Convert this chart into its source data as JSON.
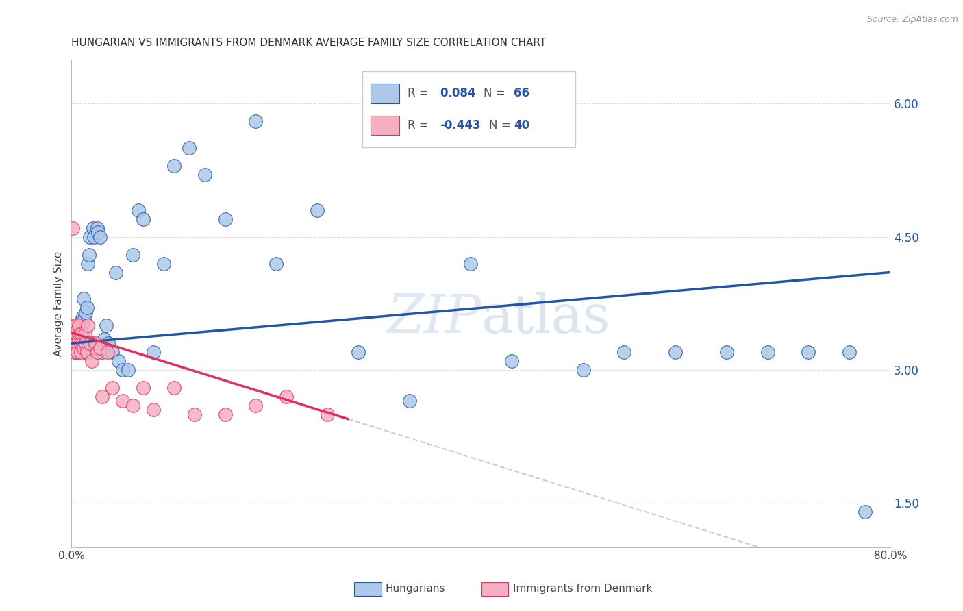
{
  "title": "HUNGARIAN VS IMMIGRANTS FROM DENMARK AVERAGE FAMILY SIZE CORRELATION CHART",
  "source": "Source: ZipAtlas.com",
  "ylabel": "Average Family Size",
  "right_yticks": [
    1.5,
    3.0,
    4.5,
    6.0
  ],
  "xmin": 0.0,
  "xmax": 0.8,
  "ymin": 1.0,
  "ymax": 6.5,
  "blue_color": "#adc8e8",
  "pink_color": "#f5afc0",
  "blue_line_color": "#2255aa",
  "pink_line_color": "#e03060",
  "dashed_line_color": "#cccccc",
  "hungarian_x": [
    0.002,
    0.003,
    0.003,
    0.004,
    0.005,
    0.005,
    0.006,
    0.006,
    0.007,
    0.007,
    0.008,
    0.008,
    0.009,
    0.009,
    0.01,
    0.01,
    0.011,
    0.011,
    0.012,
    0.013,
    0.013,
    0.014,
    0.015,
    0.016,
    0.017,
    0.018,
    0.02,
    0.021,
    0.022,
    0.024,
    0.025,
    0.026,
    0.028,
    0.03,
    0.032,
    0.034,
    0.036,
    0.04,
    0.043,
    0.046,
    0.05,
    0.055,
    0.06,
    0.065,
    0.07,
    0.08,
    0.09,
    0.1,
    0.115,
    0.13,
    0.15,
    0.18,
    0.2,
    0.24,
    0.28,
    0.33,
    0.39,
    0.43,
    0.5,
    0.54,
    0.59,
    0.64,
    0.68,
    0.72,
    0.76,
    0.775
  ],
  "hungarian_y": [
    3.25,
    3.2,
    3.35,
    3.3,
    3.4,
    3.25,
    3.3,
    3.2,
    3.35,
    3.45,
    3.5,
    3.4,
    3.55,
    3.45,
    3.5,
    3.4,
    3.55,
    3.6,
    3.8,
    3.6,
    3.2,
    3.65,
    3.7,
    4.2,
    4.3,
    4.5,
    3.3,
    4.6,
    4.5,
    3.25,
    4.6,
    4.55,
    4.5,
    3.2,
    3.35,
    3.5,
    3.3,
    3.2,
    4.1,
    3.1,
    3.0,
    3.0,
    4.3,
    4.8,
    4.7,
    3.2,
    4.2,
    5.3,
    5.5,
    5.2,
    4.7,
    5.8,
    4.2,
    4.8,
    3.2,
    2.65,
    4.2,
    3.1,
    3.0,
    3.2,
    3.2,
    3.2,
    3.2,
    3.2,
    3.2,
    1.4
  ],
  "denmark_x": [
    0.001,
    0.002,
    0.002,
    0.003,
    0.003,
    0.004,
    0.005,
    0.005,
    0.006,
    0.006,
    0.007,
    0.007,
    0.008,
    0.009,
    0.009,
    0.01,
    0.011,
    0.012,
    0.013,
    0.014,
    0.015,
    0.016,
    0.018,
    0.02,
    0.023,
    0.025,
    0.028,
    0.03,
    0.035,
    0.04,
    0.05,
    0.06,
    0.07,
    0.08,
    0.1,
    0.12,
    0.15,
    0.18,
    0.21,
    0.25
  ],
  "denmark_y": [
    4.6,
    3.3,
    3.5,
    3.4,
    3.2,
    3.5,
    3.3,
    3.4,
    3.2,
    3.45,
    3.5,
    3.35,
    3.4,
    3.2,
    3.3,
    3.4,
    3.3,
    3.25,
    3.4,
    3.3,
    3.2,
    3.5,
    3.3,
    3.1,
    3.3,
    3.2,
    3.25,
    2.7,
    3.2,
    2.8,
    2.65,
    2.6,
    2.8,
    2.55,
    2.8,
    2.5,
    2.5,
    2.6,
    2.7,
    2.5
  ]
}
